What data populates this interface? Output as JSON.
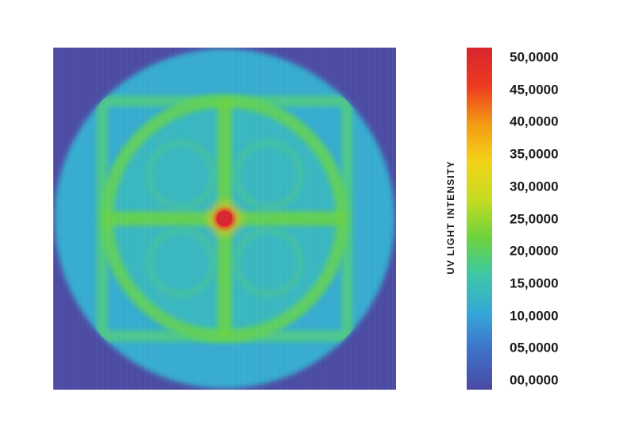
{
  "chart_data": {
    "type": "heatmap",
    "title": "",
    "colorbar": {
      "label": "UV LIGHT INTENSITY",
      "range": [
        0,
        50
      ],
      "tick_labels": [
        "50,0000",
        "45,0000",
        "40,0000",
        "35,0000",
        "30,0000",
        "25,0000",
        "20,0000",
        "15,0000",
        "10,0000",
        "05,0000",
        "00,0000"
      ],
      "tick_values": [
        50,
        45,
        40,
        35,
        30,
        25,
        20,
        15,
        10,
        5,
        0
      ],
      "colors": [
        "#4a4aa2",
        "#3f6fc8",
        "#35a6d8",
        "#3dc7a8",
        "#6cd33c",
        "#c6dc22",
        "#f3d318",
        "#f39a14",
        "#ee3a20",
        "#d8252e"
      ]
    },
    "regions": [
      {
        "name": "corner background",
        "intensity": 0
      },
      {
        "name": "outer disk",
        "intensity": 12
      },
      {
        "name": "inner square ring",
        "intensity": 19
      },
      {
        "name": "inner circle ring",
        "intensity": 21
      },
      {
        "name": "cross arms",
        "intensity": 22
      },
      {
        "name": "center hotspot",
        "intensity": 50
      }
    ]
  }
}
